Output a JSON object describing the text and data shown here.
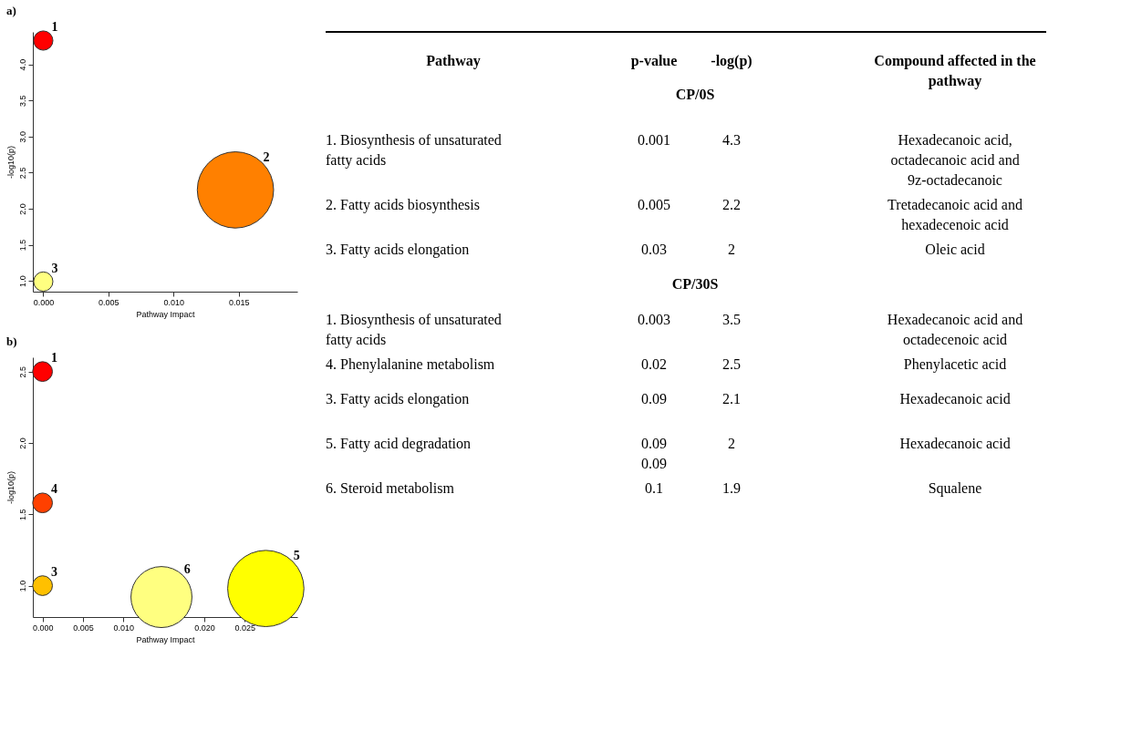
{
  "chart_data": [
    {
      "type": "bubble",
      "title": "a)",
      "xlabel": "Pathway Impact",
      "ylabel": "-log10(p)",
      "grid": false,
      "x": [
        0,
        0.01475,
        0
      ],
      "values": [
        4.33,
        2.26,
        0.99
      ],
      "sizes": [
        0.064,
        1,
        0.064
      ],
      "colors": [
        "#ff0000",
        "#ff8000",
        "#ffff80"
      ],
      "xlim": [
        -0.0008,
        0.0195
      ],
      "ylim": [
        0.85,
        4.45
      ],
      "xticks": [
        {
          "value": 0,
          "label": "0.000"
        },
        {
          "value": 0.005,
          "label": "0.005"
        },
        {
          "value": 0.01,
          "label": "0.010"
        },
        {
          "value": 0.015,
          "label": "0.015"
        }
      ],
      "yticks": [
        {
          "value": 1,
          "label": "1.0"
        },
        {
          "value": 1.5,
          "label": "1.5"
        },
        {
          "value": 2,
          "label": "2.0"
        },
        {
          "value": 2.5,
          "label": "2.5"
        },
        {
          "value": 3,
          "label": "3.0"
        },
        {
          "value": 3.5,
          "label": "3.5"
        },
        {
          "value": 4,
          "label": "4.0"
        }
      ],
      "annotations": [
        {
          "text": "1",
          "x": 0,
          "y": 4.33
        },
        {
          "text": "2",
          "x": 0.01475,
          "y": 2.26
        },
        {
          "text": "3",
          "x": 0,
          "y": 0.99
        }
      ]
    },
    {
      "type": "bubble",
      "title": "b)",
      "xlabel": "Pathway Impact",
      "ylabel": "-log10(p)",
      "grid": false,
      "x": [
        0,
        0,
        0,
        0.0147,
        0.0276
      ],
      "values": [
        2.5,
        1.58,
        1.0,
        0.92,
        0.98
      ],
      "sizes": [
        0.067,
        0.067,
        0.067,
        0.64,
        1
      ],
      "colors": [
        "#ff0000",
        "#ff4000",
        "#ffc000",
        "#ffff80",
        "#ffff00"
      ],
      "xlim": [
        -0.0012,
        0.0315
      ],
      "ylim": [
        0.78,
        2.6
      ],
      "xticks": [
        {
          "value": 0,
          "label": "0.000"
        },
        {
          "value": 0.005,
          "label": "0.005"
        },
        {
          "value": 0.01,
          "label": "0.010"
        },
        {
          "value": 0.02,
          "label": "0.020"
        },
        {
          "value": 0.025,
          "label": "0.025"
        }
      ],
      "yticks": [
        {
          "value": 1,
          "label": "1.0"
        },
        {
          "value": 1.5,
          "label": "1.5"
        },
        {
          "value": 2,
          "label": "2.0"
        },
        {
          "value": 2.5,
          "label": "2.5"
        }
      ],
      "annotations": [
        {
          "text": "1",
          "x": 0,
          "y": 2.5
        },
        {
          "text": "4",
          "x": 0,
          "y": 1.58
        },
        {
          "text": "3",
          "x": 0,
          "y": 1.0
        },
        {
          "text": "6",
          "x": 0.0147,
          "y": 0.92
        },
        {
          "text": "5",
          "x": 0.0276,
          "y": 0.98
        }
      ]
    },
    {
      "type": "other",
      "categories": [
        "Pathway",
        "p-value",
        "-log(p)",
        "Compound affected in the pathway"
      ],
      "cell_labels": [
        [
          null,
          "CP/0S",
          null,
          null
        ],
        [
          "1. Biosynthesis of unsaturated fatty acids",
          "0.001",
          "4.3",
          "Hexadecanoic acid, octadecanoic acid and 9z-octadecanoic"
        ],
        [
          "2. Fatty acids biosynthesis",
          "0.005",
          "2.2",
          "Tretadecanoic acid and hexadecenoic acid"
        ],
        [
          "3. Fatty acids elongation",
          "0.03",
          "2",
          "Oleic acid"
        ],
        [
          null,
          "CP/30S",
          null,
          null
        ],
        [
          "1. Biosynthesis of unsaturated fatty acids",
          "0.003",
          "3.5",
          "Hexadecanoic acid and octadecenoic acid"
        ],
        [
          "4. Phenylalanine metabolism",
          "0.02",
          "2.5",
          "Phenylacetic acid"
        ],
        [
          "3. Fatty acids elongation",
          "0.09",
          "2.1",
          "Hexadecanoic acid"
        ],
        [
          "5. Fatty acid degradation",
          "0.09 0.09",
          "2",
          "Hexadecanoic acid"
        ],
        [
          "6. Steroid metabolism",
          "0.1",
          "1.9",
          "Squalene"
        ]
      ]
    }
  ]
}
